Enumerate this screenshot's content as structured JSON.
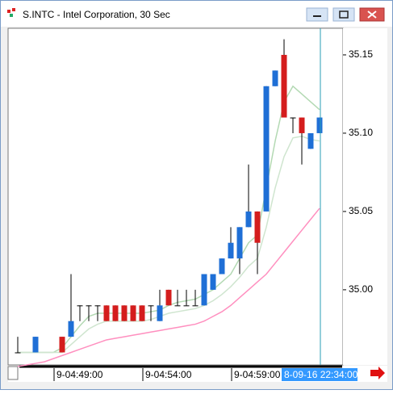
{
  "window_title": "S.INTC - Intel Corporation, 30 Sec",
  "chart_data": {
    "type": "candlestick",
    "categories": [
      null,
      null,
      null,
      null,
      "9-04:49:00",
      null,
      null,
      null,
      null,
      null,
      null,
      null,
      null,
      null,
      "9-04:54:00",
      null,
      null,
      null,
      null,
      null,
      null,
      null,
      null,
      null,
      "9-04:59:00",
      null,
      null,
      null,
      null,
      null,
      null,
      null,
      null,
      null,
      null
    ],
    "open": [
      34.96,
      null,
      34.96,
      null,
      null,
      34.97,
      34.97,
      34.99,
      34.99,
      34.99,
      34.99,
      34.99,
      34.99,
      34.99,
      34.99,
      34.99,
      34.98,
      35.0,
      34.99,
      34.99,
      34.99,
      34.99,
      35.0,
      35.01,
      35.02,
      35.02,
      35.04,
      35.05,
      35.05,
      35.13,
      35.15,
      35.11,
      35.11,
      35.09,
      35.1
    ],
    "high": [
      34.97,
      null,
      34.97,
      null,
      null,
      34.97,
      35.01,
      34.99,
      34.99,
      34.99,
      34.99,
      34.99,
      34.99,
      34.99,
      34.99,
      34.99,
      35.0,
      35.0,
      35.0,
      35.0,
      35.0,
      35.01,
      35.01,
      35.02,
      35.04,
      35.04,
      35.08,
      35.05,
      35.13,
      35.14,
      35.16,
      35.11,
      35.11,
      35.1,
      35.11
    ],
    "low": [
      34.96,
      null,
      34.96,
      null,
      null,
      34.96,
      34.97,
      34.98,
      34.98,
      34.98,
      34.98,
      34.98,
      34.98,
      34.98,
      34.98,
      34.98,
      34.98,
      34.99,
      34.99,
      34.99,
      34.99,
      34.99,
      35.0,
      35.01,
      35.02,
      35.01,
      35.04,
      35.01,
      35.05,
      35.13,
      35.11,
      35.1,
      35.08,
      35.09,
      35.1
    ],
    "close": [
      34.96,
      null,
      34.97,
      null,
      null,
      34.96,
      34.98,
      34.99,
      34.99,
      34.99,
      34.98,
      34.98,
      34.98,
      34.98,
      34.98,
      34.99,
      34.99,
      34.99,
      34.99,
      34.99,
      34.99,
      35.01,
      35.01,
      35.02,
      35.03,
      35.04,
      35.05,
      35.03,
      35.13,
      35.14,
      35.11,
      35.11,
      35.1,
      35.1,
      35.11
    ],
    "up_color": "#1f6fd6",
    "down_color": "#d41d1d",
    "lines": [
      {
        "color": "#b3d9b3",
        "values": [
          34.96,
          34.96,
          34.96,
          34.96,
          34.96,
          34.963,
          34.97,
          34.977,
          34.983,
          34.985,
          34.985,
          34.985,
          34.985,
          34.985,
          34.985,
          34.986,
          34.987,
          34.99,
          34.992,
          34.993,
          34.994,
          34.997,
          35.0,
          35.005,
          35.01,
          35.02,
          35.03,
          35.035,
          35.065,
          35.095,
          35.12,
          35.13,
          35.125,
          35.12,
          35.115
        ]
      },
      {
        "color": "#cfe5cf",
        "values": [
          34.96,
          34.96,
          34.96,
          34.96,
          34.96,
          34.96,
          34.965,
          34.97,
          34.975,
          34.978,
          34.98,
          34.98,
          34.98,
          34.98,
          34.98,
          34.981,
          34.983,
          34.985,
          34.986,
          34.987,
          34.988,
          34.99,
          34.993,
          34.997,
          35.002,
          35.008,
          35.015,
          35.02,
          35.04,
          35.065,
          35.085,
          35.097,
          35.098,
          35.096,
          35.095
        ]
      },
      {
        "color": "#ff8fbf",
        "values": [
          34.951,
          34.952,
          34.953,
          34.954,
          34.956,
          34.958,
          34.96,
          34.962,
          34.964,
          34.966,
          34.968,
          34.969,
          34.97,
          34.971,
          34.972,
          34.973,
          34.974,
          34.975,
          34.976,
          34.977,
          34.978,
          34.98,
          34.983,
          34.986,
          34.99,
          34.995,
          35.0,
          35.005,
          35.01,
          35.017,
          35.024,
          35.031,
          35.038,
          35.045,
          35.052
        ]
      }
    ],
    "ylim": [
      34.952,
      35.167
    ],
    "yticks": [
      {
        "value": 35,
        "label": "35.00"
      },
      {
        "value": 35.05,
        "label": "35.05"
      },
      {
        "value": 35.1,
        "label": "35.10"
      },
      {
        "value": 35.15,
        "label": "35.15"
      }
    ],
    "cursor_label": "8-09-16 22:34:00",
    "cursor_color": "#2a9db5"
  }
}
